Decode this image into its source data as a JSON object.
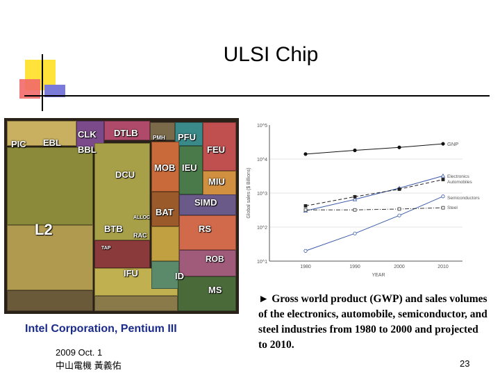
{
  "slide": {
    "title": "ULSI Chip",
    "caption": "Intel Corporation, Pentium III",
    "date": "2009 Oct. 1",
    "author": "中山電機 黃義佑",
    "page_number": "23",
    "description": "► Gross world product (GWP) and sales volumes of the electronics, automobile, semiconductor, and steel industries from 1980 to 2000 and projected to 2010."
  },
  "colors": {
    "corner_yellow": "#ffe23a",
    "corner_red": "#f26a6a",
    "corner_blue": "#7a7ad8",
    "caption_blue": "#1a2a8a"
  },
  "die": {
    "labels": [
      "PIC",
      "EBL",
      "CLK",
      "DTLB",
      "PMH",
      "PFU",
      "BBL",
      "FEU",
      "DCU",
      "MOB",
      "IEU",
      "MIU",
      "SIMD",
      "BAT",
      "ALLOC",
      "BTB",
      "RAC",
      "RS",
      "L2",
      "TAP",
      "ROB",
      "IFU",
      "ID",
      "MS"
    ]
  },
  "chart_data": {
    "type": "line",
    "yscale": "log",
    "xlabel": "YEAR",
    "ylabel": "Global sales ($ Billions)",
    "x": [
      1980,
      1990,
      2000,
      2010
    ],
    "x_ticks": [
      "1980",
      "1990",
      "2000",
      "2010"
    ],
    "y_ticks": [
      "10^1",
      "10^2",
      "10^3",
      "10^4",
      "10^5"
    ],
    "ylim": [
      10,
      100000
    ],
    "grid": "horizontal",
    "series": [
      {
        "name": "GNP",
        "values": [
          14000,
          18000,
          22000,
          28000
        ],
        "style": "solid",
        "marker": "filled-circle"
      },
      {
        "name": "Electronics",
        "values": [
          300,
          650,
          1400,
          3200
        ],
        "style": "solid",
        "marker": "open-triangle"
      },
      {
        "name": "Automobiles",
        "values": [
          420,
          780,
          1300,
          2500
        ],
        "style": "dashed",
        "marker": "filled-square"
      },
      {
        "name": "Semiconductors",
        "values": [
          20,
          65,
          220,
          800
        ],
        "style": "solid",
        "marker": "open-circle"
      },
      {
        "name": "Steel",
        "values": [
          320,
          320,
          340,
          370
        ],
        "style": "dash-dot",
        "marker": "open-square"
      }
    ]
  }
}
